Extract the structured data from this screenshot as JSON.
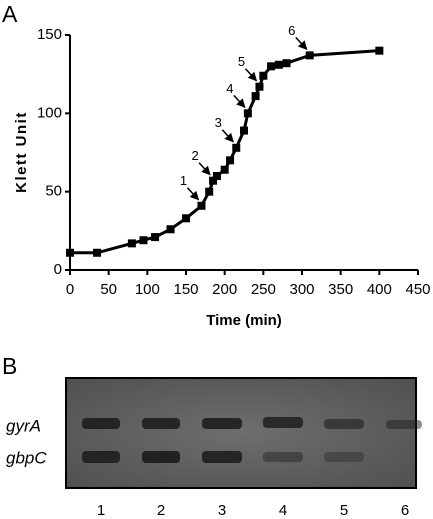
{
  "panel_labels": [
    "A",
    "B"
  ],
  "chart_data": {
    "type": "line",
    "x_label": "Time (min)",
    "y_label": "Klett Unit",
    "x": [
      0,
      35,
      80,
      95,
      110,
      130,
      150,
      170,
      180,
      185,
      190,
      200,
      207,
      215,
      225,
      230,
      240,
      245,
      250,
      260,
      270,
      280,
      310,
      400
    ],
    "series": [
      {
        "color": "#000000",
        "values": [
          11,
          11,
          17,
          19,
          21,
          26,
          33,
          41,
          50,
          57,
          60,
          64,
          70,
          78,
          89,
          100,
          111,
          117,
          124,
          130,
          131,
          132,
          137,
          140
        ]
      }
    ],
    "xlim": [
      0,
      450
    ],
    "xticks": [
      0,
      50,
      100,
      150,
      200,
      250,
      300,
      350,
      400,
      450
    ],
    "ylim": [
      0,
      150
    ],
    "yticks": [
      0,
      50,
      100,
      150
    ],
    "annotations": [
      "1",
      "2",
      "3",
      "4",
      "5",
      "6"
    ]
  },
  "gel": {
    "row_labels": [
      "gyrA",
      "gbpC"
    ],
    "lane_labels": [
      "1",
      "2",
      "3",
      "4",
      "5",
      "6"
    ]
  }
}
